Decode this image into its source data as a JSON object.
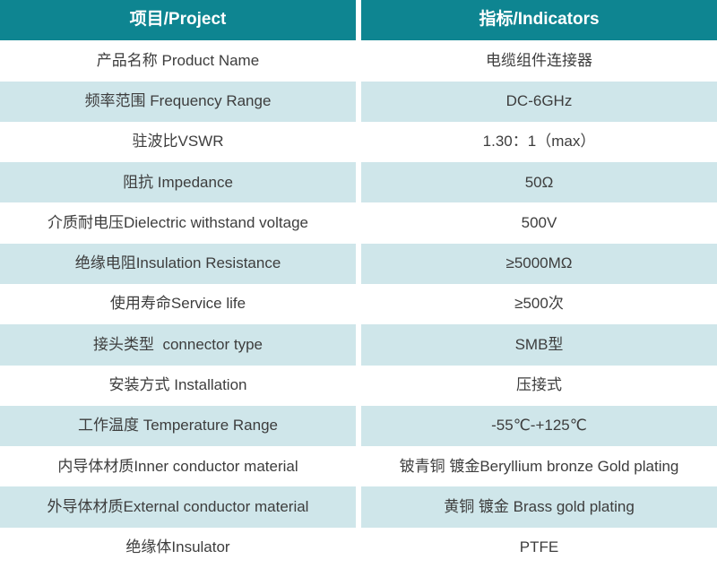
{
  "table": {
    "headers": [
      "项目/Project",
      "指标/Indicators"
    ],
    "rows": [
      {
        "project": "产品名称 Product Name",
        "indicator": "电缆组件连接器"
      },
      {
        "project": "频率范围 Frequency Range",
        "indicator": "DC-6GHz"
      },
      {
        "project": "驻波比VSWR",
        "indicator": "1.30：1（max）"
      },
      {
        "project": "阻抗 Impedance",
        "indicator": "50Ω"
      },
      {
        "project": "介质耐电压Dielectric withstand voltage",
        "indicator": "500V"
      },
      {
        "project": "绝缘电阻Insulation Resistance",
        "indicator": "≥5000MΩ"
      },
      {
        "project": "使用寿命Service life",
        "indicator": "≥500次"
      },
      {
        "project": "接头类型  connector type",
        "indicator": "SMB型"
      },
      {
        "project": "安装方式 Installation",
        "indicator": "压接式"
      },
      {
        "project": "工作温度 Temperature Range",
        "indicator": "-55℃-+125℃"
      },
      {
        "project": "内导体材质Inner conductor material",
        "indicator": "铍青铜 镀金Beryllium bronze Gold plating"
      },
      {
        "project": "外导体材质External conductor material",
        "indicator": "黄铜 镀金 Brass gold plating"
      },
      {
        "project": "绝缘体Insulator",
        "indicator": "PTFE"
      }
    ],
    "colors": {
      "header_bg": "#0e8591",
      "alt_row_bg": "#cfe6ea",
      "row_bg": "#ffffff",
      "text": "#3d3d3d",
      "header_text": "#ffffff"
    }
  }
}
